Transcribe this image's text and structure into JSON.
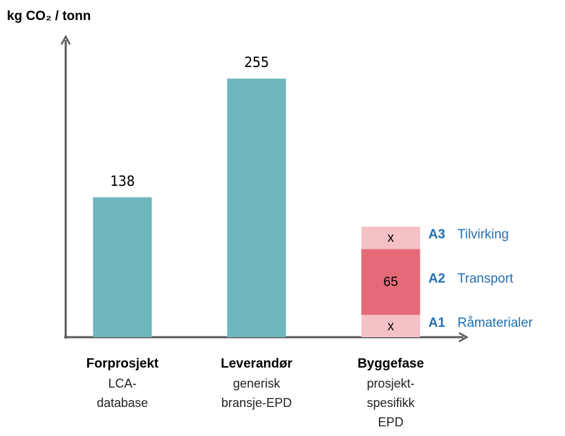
{
  "chart_data": {
    "type": "bar",
    "y_label": "kg CO₂ / tonn",
    "categories": [
      "Forprosjekt",
      "Leverandør",
      "Byggefase"
    ],
    "category_descriptions": [
      [
        "LCA-",
        "database"
      ],
      [
        "generisk",
        "bransje-EPD"
      ],
      [
        "prosjekt-",
        "spesifikk",
        "EPD"
      ]
    ],
    "values": [
      138,
      255,
      null
    ],
    "color": "#70b7bd",
    "ylim": [
      0,
      295
    ],
    "stages": [
      {
        "code": "A1",
        "name": "Råmaterialer",
        "color": "#f4c2c6",
        "value": 22,
        "value_label": "x"
      },
      {
        "code": "A2",
        "name": "Transport",
        "color": "#e46a78",
        "value": 65
      },
      {
        "code": "A3",
        "name": "Tilvirking",
        "color": "#f4c2c6",
        "value": 22,
        "value_label": "x"
      }
    ],
    "stage_label_color": "#1f6fb5"
  }
}
